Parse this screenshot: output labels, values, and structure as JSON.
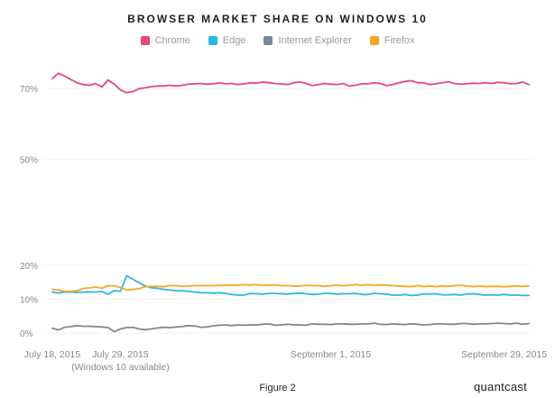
{
  "chart_data": {
    "type": "line",
    "title": "BROWSER MARKET SHARE ON WINDOWS 10",
    "y_ticks": [
      "0%",
      "10%",
      "20%",
      "50%",
      "70%"
    ],
    "ylim": [
      0,
      75
    ],
    "x_ticks": [
      {
        "index": 0,
        "label": "July 18, 2015",
        "sub": ""
      },
      {
        "index": 11,
        "label": "July 29, 2015",
        "sub": "(Windows 10 available)"
      },
      {
        "index": 45,
        "label": "September 1, 2015",
        "sub": ""
      },
      {
        "index": 73,
        "label": "September 29, 2015",
        "sub": ""
      }
    ],
    "legend_position": "top-center",
    "grid": "horizontal dotted",
    "series": [
      {
        "name": "Chrome",
        "color": "#e5487d",
        "values": [
          72.8,
          74.3,
          73.5,
          72.5,
          71.6,
          71.1,
          70.9,
          71.4,
          70.4,
          72.4,
          71.2,
          69.6,
          68.8,
          69.1,
          69.9,
          70.2,
          70.5,
          70.7,
          70.7,
          70.9,
          70.7,
          70.9,
          71.2,
          71.3,
          71.4,
          71.2,
          71.3,
          71.6,
          71.3,
          71.4,
          71.1,
          71.3,
          71.6,
          71.5,
          71.8,
          71.6,
          71.4,
          71.3,
          71.1,
          71.6,
          71.8,
          71.4,
          70.8,
          71.1,
          71.4,
          71.2,
          71.1,
          71.4,
          70.7,
          70.9,
          71.3,
          71.3,
          71.6,
          71.4,
          70.8,
          71.1,
          71.6,
          72.0,
          72.2,
          71.6,
          71.6,
          71.1,
          71.3,
          71.6,
          71.9,
          71.4,
          71.2,
          71.3,
          71.5,
          71.4,
          71.6,
          71.4,
          71.7,
          71.6,
          71.3,
          71.4,
          71.8,
          71.1
        ]
      },
      {
        "name": "Edge",
        "color": "#29b8e4",
        "values": [
          12.1,
          11.8,
          12.1,
          12.1,
          12.0,
          12.1,
          12.2,
          12.1,
          12.3,
          11.5,
          12.5,
          12.3,
          16.9,
          15.9,
          14.9,
          13.9,
          13.4,
          13.2,
          12.9,
          12.7,
          12.5,
          12.5,
          12.3,
          12.1,
          11.9,
          11.9,
          11.8,
          11.9,
          11.7,
          11.4,
          11.2,
          11.2,
          11.7,
          11.6,
          11.5,
          11.7,
          11.7,
          11.6,
          11.5,
          11.7,
          11.8,
          11.6,
          11.4,
          11.5,
          11.7,
          11.7,
          11.5,
          11.6,
          11.6,
          11.7,
          11.4,
          11.4,
          11.7,
          11.6,
          11.5,
          11.2,
          11.2,
          11.4,
          11.1,
          11.2,
          11.6,
          11.5,
          11.6,
          11.3,
          11.3,
          11.4,
          11.2,
          11.5,
          11.6,
          11.4,
          11.2,
          11.3,
          11.2,
          11.4,
          11.2,
          11.2,
          11.1,
          11.1
        ]
      },
      {
        "name": "Internet Explorer",
        "color": "#7a8896",
        "values": [
          1.4,
          0.9,
          1.7,
          1.9,
          2.2,
          2.0,
          2.0,
          1.9,
          1.8,
          1.6,
          0.4,
          1.2,
          1.6,
          1.7,
          1.2,
          1.0,
          1.2,
          1.5,
          1.7,
          1.6,
          1.8,
          1.9,
          2.2,
          2.1,
          1.7,
          1.8,
          2.1,
          2.3,
          2.4,
          2.2,
          2.4,
          2.3,
          2.4,
          2.4,
          2.6,
          2.7,
          2.3,
          2.4,
          2.6,
          2.4,
          2.4,
          2.3,
          2.7,
          2.6,
          2.6,
          2.5,
          2.7,
          2.7,
          2.6,
          2.6,
          2.7,
          2.7,
          2.9,
          2.6,
          2.5,
          2.7,
          2.6,
          2.5,
          2.7,
          2.6,
          2.4,
          2.5,
          2.7,
          2.7,
          2.6,
          2.6,
          2.8,
          2.8,
          2.6,
          2.7,
          2.7,
          2.8,
          2.9,
          2.8,
          2.7,
          2.9,
          2.6,
          2.8
        ]
      },
      {
        "name": "Firefox",
        "color": "#f5a623",
        "values": [
          12.9,
          12.7,
          12.3,
          12.3,
          12.5,
          13.2,
          13.3,
          13.6,
          13.2,
          14.0,
          13.9,
          13.5,
          12.7,
          12.9,
          13.1,
          13.7,
          13.8,
          13.8,
          13.7,
          14.0,
          14.0,
          13.8,
          13.9,
          14.0,
          14.0,
          14.0,
          14.0,
          14.1,
          14.1,
          14.1,
          14.1,
          14.3,
          14.2,
          14.3,
          14.1,
          14.2,
          14.2,
          14.0,
          14.0,
          13.9,
          13.9,
          14.1,
          14.0,
          14.0,
          13.8,
          14.0,
          14.1,
          14.0,
          14.1,
          14.3,
          14.1,
          14.3,
          14.1,
          14.2,
          14.1,
          14.0,
          13.9,
          13.8,
          13.7,
          14.0,
          13.7,
          13.9,
          13.7,
          13.9,
          13.8,
          14.0,
          14.1,
          13.9,
          13.7,
          13.9,
          13.7,
          13.8,
          13.8,
          13.7,
          13.8,
          13.9,
          13.8,
          13.9
        ]
      }
    ]
  },
  "figure_label": "Figure 2",
  "brand": "quantcast"
}
